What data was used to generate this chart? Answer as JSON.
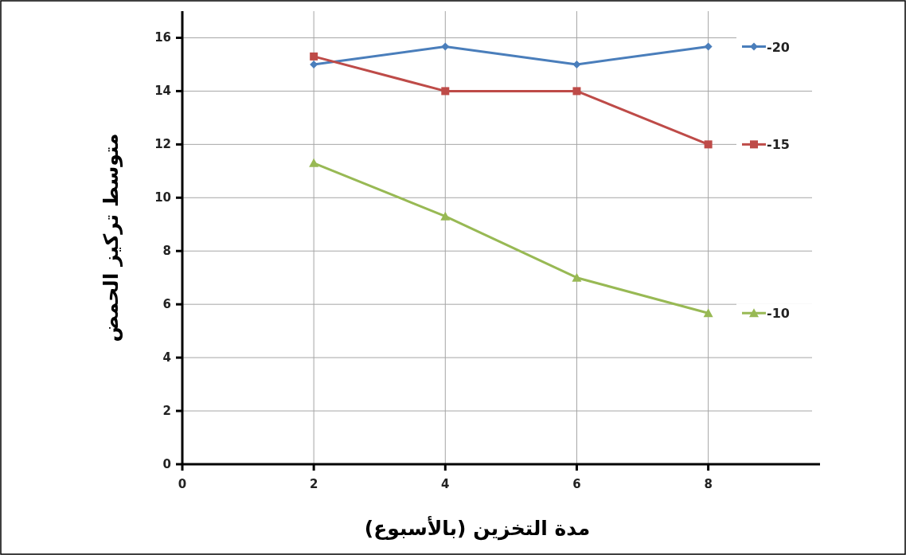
{
  "chart_data": {
    "type": "line",
    "xlabel": "مدة التخزين (بالأسبوع)",
    "ylabel": "متوسط تركيز الحمض",
    "xlim": [
      0,
      9.7
    ],
    "ylim": [
      0,
      17
    ],
    "xticks": [
      0,
      2,
      4,
      6,
      8
    ],
    "yticks": [
      0,
      2,
      4,
      6,
      8,
      10,
      12,
      14,
      16
    ],
    "x": [
      2,
      4,
      6,
      8
    ],
    "grid": true,
    "legend": "right",
    "series": [
      {
        "name": "-20",
        "color": "#4a7ebb",
        "marker": "diamond",
        "values": [
          15,
          15.67,
          15,
          15.67
        ]
      },
      {
        "name": "-15",
        "color": "#be4b48",
        "marker": "square",
        "values": [
          15.3,
          14,
          14,
          12
        ]
      },
      {
        "name": "-10",
        "color": "#98b954",
        "marker": "triangle",
        "values": [
          11.3,
          9.3,
          7,
          5.67
        ]
      }
    ]
  }
}
